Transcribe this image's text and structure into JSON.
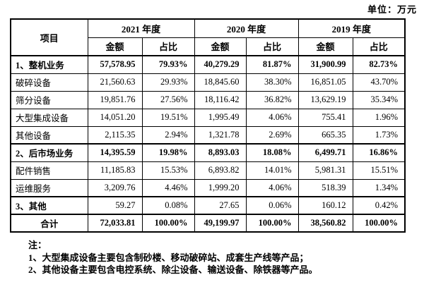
{
  "unit_label": "单位：万元",
  "table": {
    "item_header": "项目",
    "year_groups": [
      {
        "label": "2021 年度"
      },
      {
        "label": "2020 年度"
      },
      {
        "label": "2019 年度"
      }
    ],
    "sub_headers": {
      "amount": "金额",
      "ratio": "占比"
    },
    "rows": [
      {
        "label": "1、整机业务",
        "style": "section",
        "cells": [
          "57,578.95",
          "79.93%",
          "40,279.29",
          "81.87%",
          "31,900.99",
          "82.73%"
        ]
      },
      {
        "label": "破碎设备",
        "style": "normal",
        "cells": [
          "21,560.63",
          "29.93%",
          "18,845.60",
          "38.30%",
          "16,851.05",
          "43.70%"
        ]
      },
      {
        "label": "筛分设备",
        "style": "normal",
        "cells": [
          "19,851.76",
          "27.56%",
          "18,116.42",
          "36.82%",
          "13,629.19",
          "35.34%"
        ]
      },
      {
        "label": "大型集成设备",
        "style": "normal",
        "cells": [
          "14,051.20",
          "19.51%",
          "1,995.49",
          "4.06%",
          "755.41",
          "1.96%"
        ]
      },
      {
        "label": "其他设备",
        "style": "normal",
        "cells": [
          "2,115.35",
          "2.94%",
          "1,321.78",
          "2.69%",
          "665.35",
          "1.73%"
        ]
      },
      {
        "label": "2、后市场业务",
        "style": "section",
        "cells": [
          "14,395.59",
          "19.98%",
          "8,893.03",
          "18.08%",
          "6,499.71",
          "16.86%"
        ]
      },
      {
        "label": "配件销售",
        "style": "normal",
        "cells": [
          "11,185.83",
          "15.53%",
          "6,893.82",
          "14.01%",
          "5,981.31",
          "15.51%"
        ]
      },
      {
        "label": "运维服务",
        "style": "normal",
        "cells": [
          "3,209.76",
          "4.46%",
          "1,999.20",
          "4.06%",
          "518.39",
          "1.34%"
        ]
      },
      {
        "label": "3、其他",
        "style": "section-label",
        "cells": [
          "59.27",
          "0.08%",
          "27.65",
          "0.06%",
          "160.12",
          "0.42%"
        ]
      },
      {
        "label": "合计",
        "style": "total",
        "cells": [
          "72,033.81",
          "100.00%",
          "49,199.97",
          "100.00%",
          "38,560.82",
          "100.00%"
        ]
      }
    ]
  },
  "notes": {
    "title": "注：",
    "items": [
      "1、大型集成设备主要包含制砂楼、移动破碎站、成套生产线等产品；",
      "2、其他设备主要包含电控系统、除尘设备、输送设备、除铁器等产品。"
    ]
  }
}
